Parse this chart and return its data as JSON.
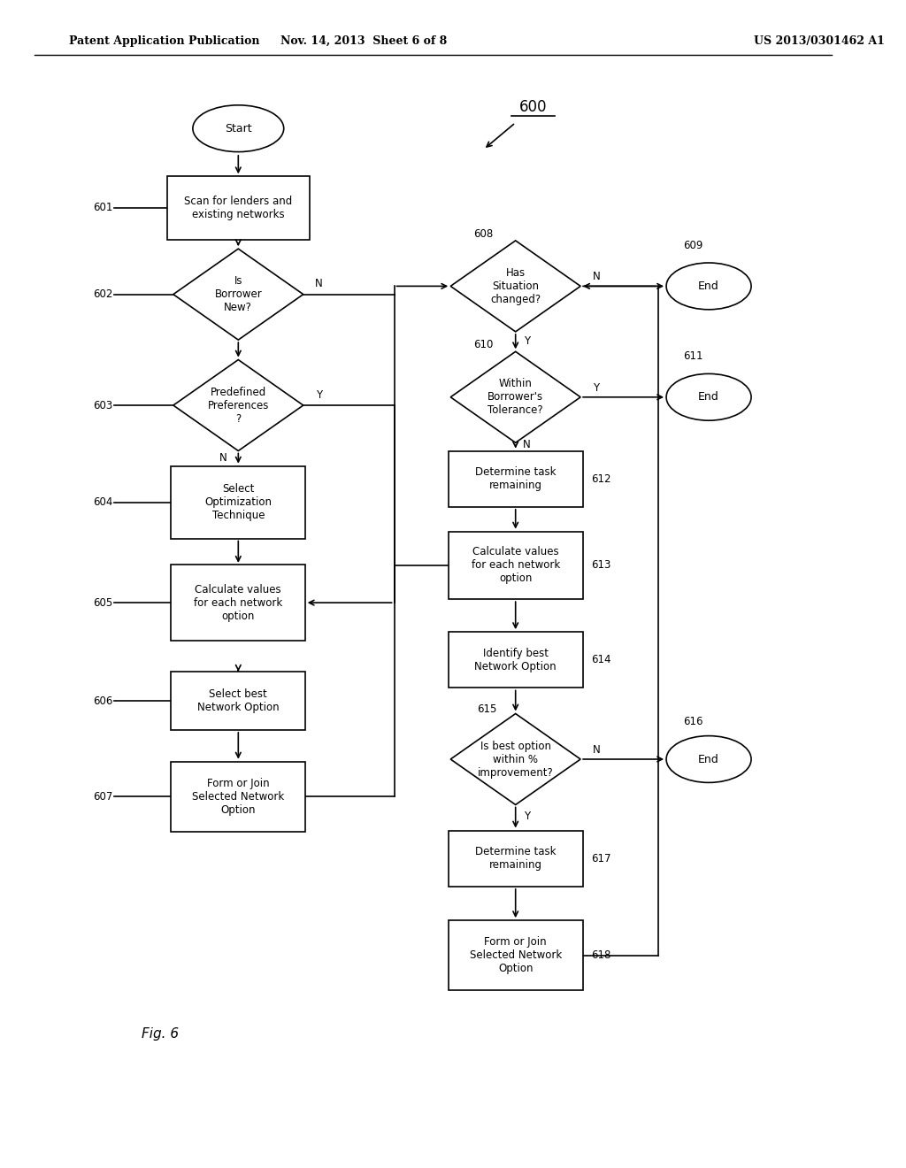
{
  "bg_color": "#ffffff",
  "header_left": "Patent Application Publication",
  "header_center": "Nov. 14, 2013  Sheet 6 of 8",
  "header_right": "US 2013/0301462 A1",
  "figure_label": "Fig. 6",
  "ref_label": "600"
}
